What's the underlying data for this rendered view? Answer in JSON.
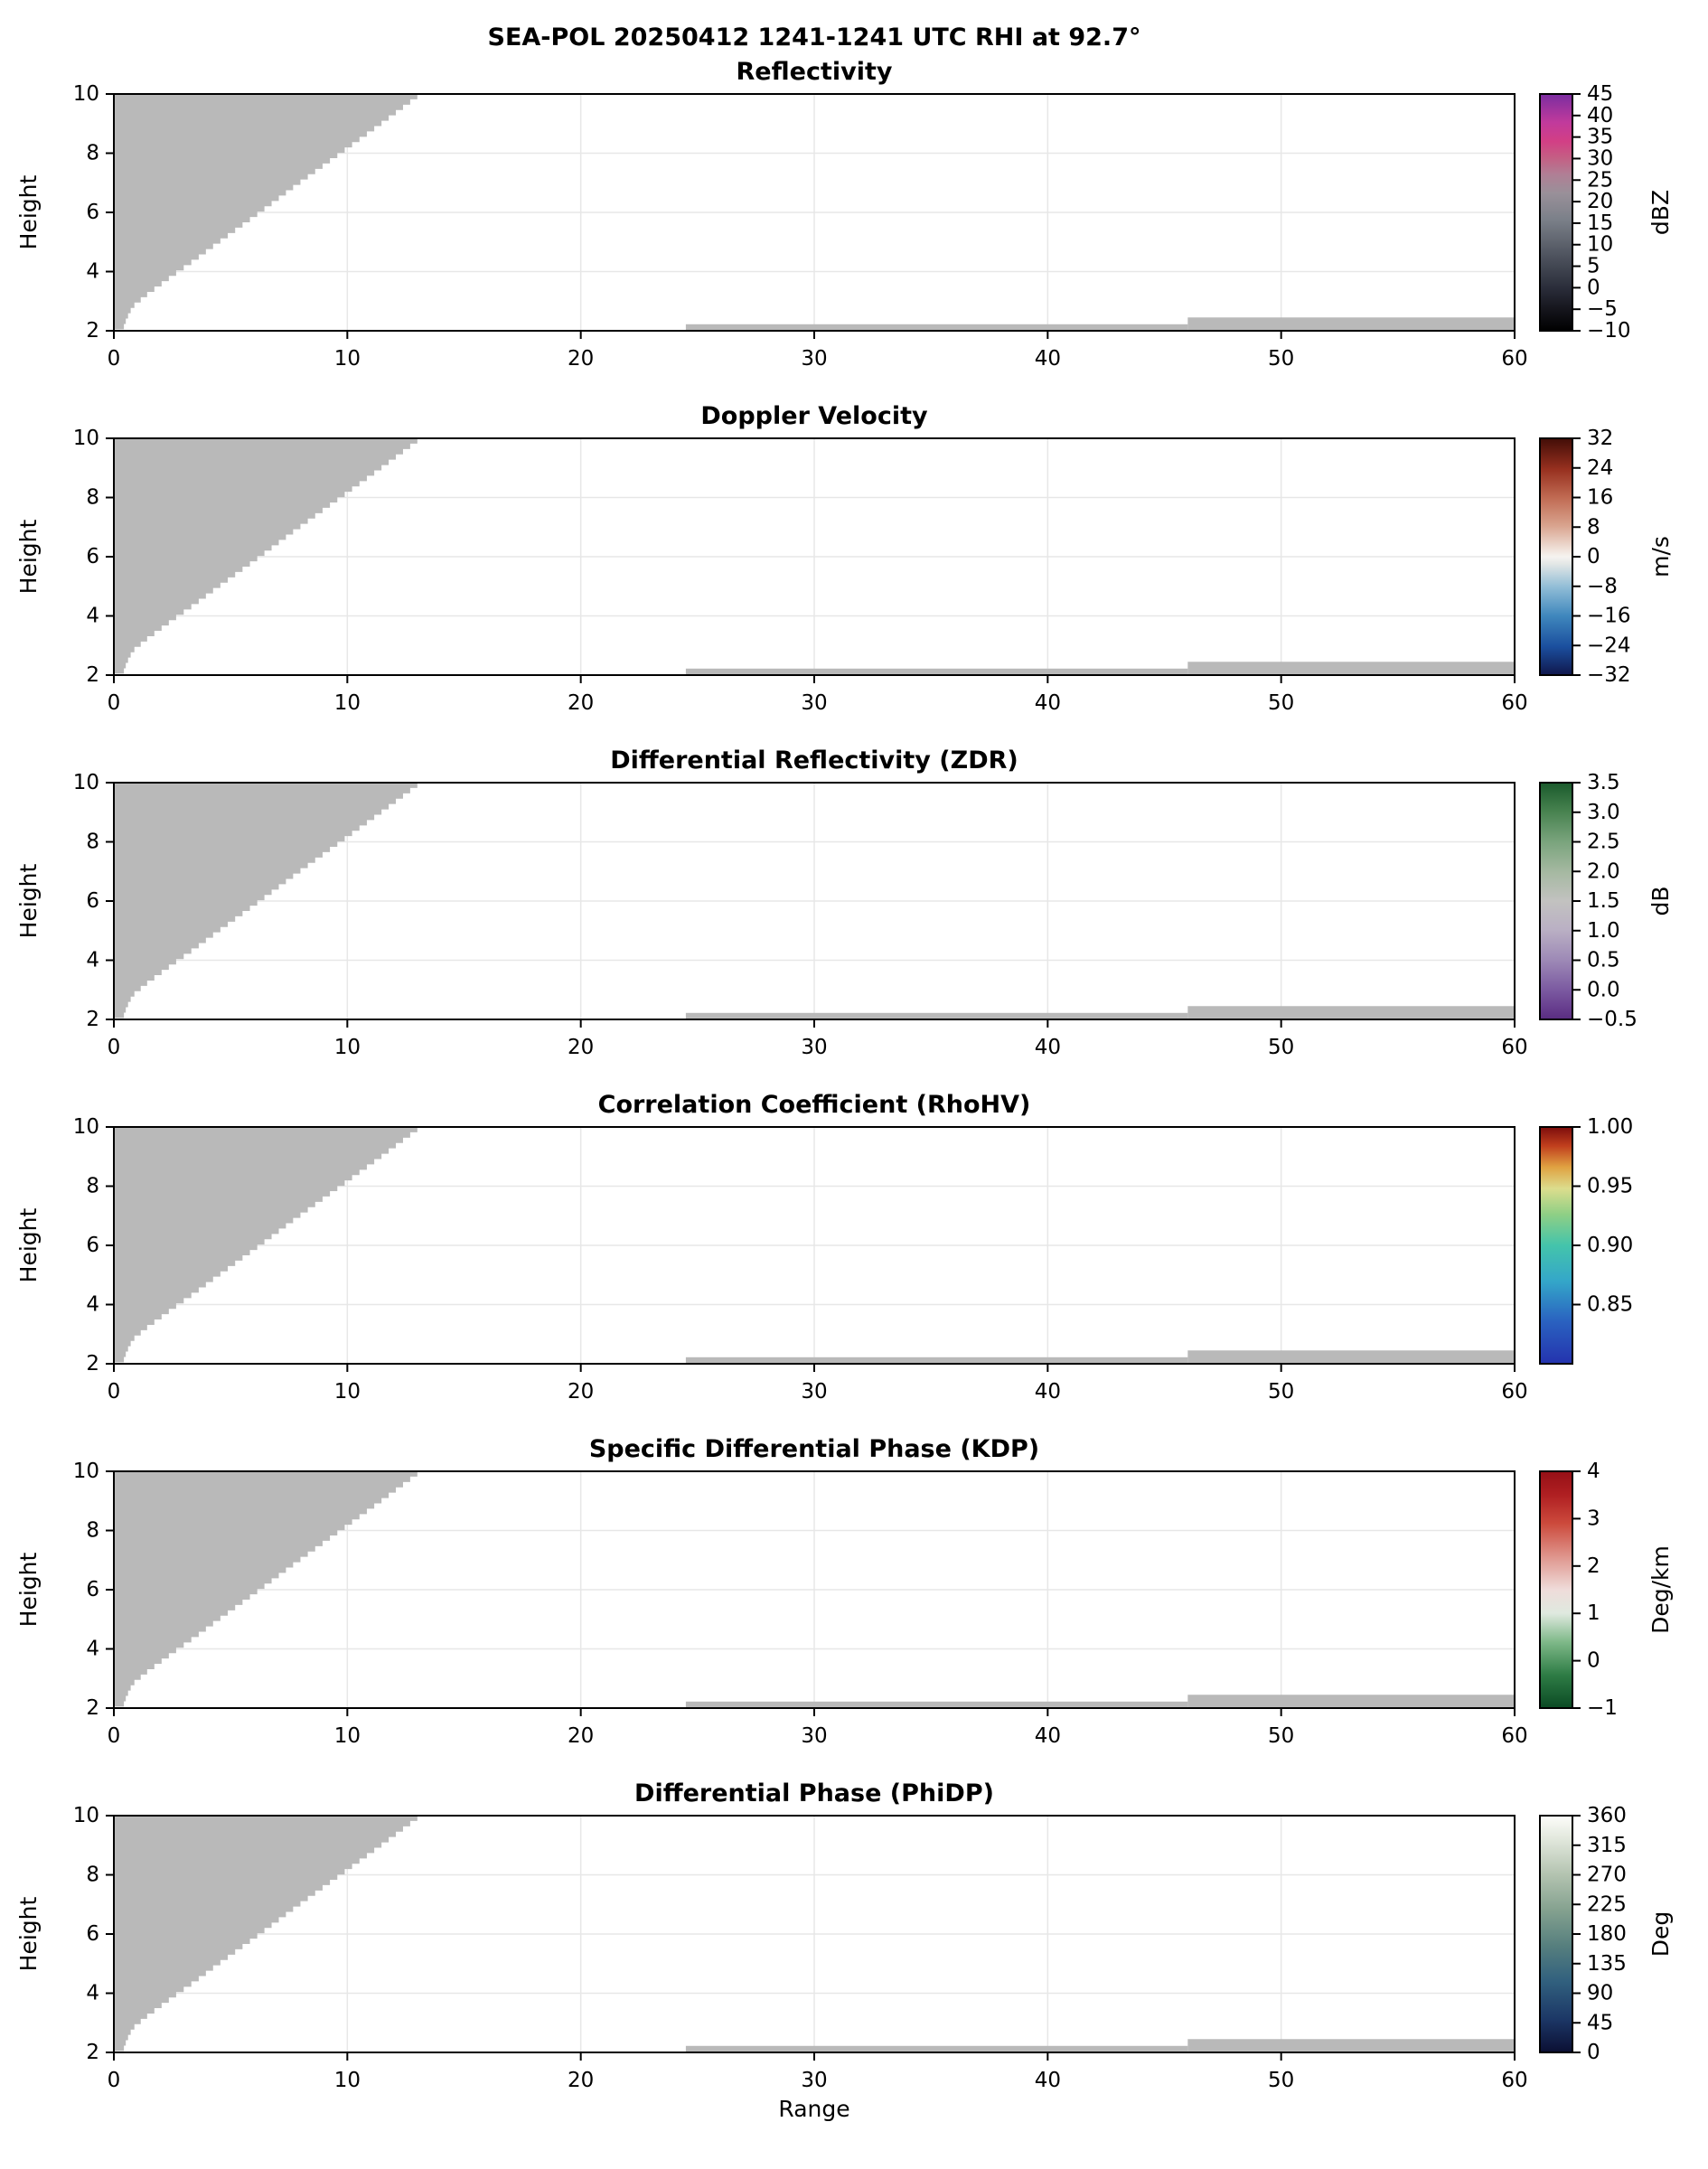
{
  "chart_data": {
    "type": "heatmap",
    "title": "SEA-POL 20250412 1241-1241 UTC RHI at 92.7°",
    "xlabel": "Range",
    "ylabel": "Height",
    "xlim": [
      0,
      60
    ],
    "ylim": [
      2,
      10
    ],
    "xticks": [
      0,
      10,
      20,
      30,
      40,
      50,
      60
    ],
    "yticks": [
      2,
      4,
      6,
      8,
      10
    ],
    "grid": true,
    "legend_position": "right-colorbars",
    "no_data_mask": {
      "color": "#b9b9b9",
      "wedge_edge_xy": [
        [
          0.35,
          2.05
        ],
        [
          0.55,
          2.5
        ],
        [
          0.8,
          2.9
        ],
        [
          1.4,
          3.3
        ],
        [
          2.6,
          4.0
        ],
        [
          3.5,
          4.5
        ],
        [
          4.35,
          5.0
        ],
        [
          6.1,
          6.0
        ],
        [
          7.8,
          7.0
        ],
        [
          9.55,
          8.0
        ],
        [
          11.3,
          9.0
        ],
        [
          13.0,
          10.0
        ]
      ],
      "strips": [
        {
          "x0": 24.5,
          "x1": 46.0,
          "y0": 2.0,
          "y1": 2.22
        },
        {
          "x0": 46.0,
          "x1": 60.0,
          "y0": 2.0,
          "y1": 2.45
        }
      ]
    },
    "panels": [
      {
        "title": "Reflectivity",
        "units": "dBZ",
        "cmin": -10,
        "cmax": 45,
        "cticks": [
          -10,
          -5,
          0,
          5,
          10,
          15,
          20,
          25,
          30,
          35,
          40,
          45
        ],
        "ctick_labels": [
          "−10",
          "−5",
          "0",
          "5",
          "10",
          "15",
          "20",
          "25",
          "30",
          "35",
          "40",
          "45"
        ],
        "colormap": [
          [
            0,
            "#000000"
          ],
          [
            0.09,
            "#15151c"
          ],
          [
            0.18,
            "#2a2d3a"
          ],
          [
            0.32,
            "#4f545f"
          ],
          [
            0.47,
            "#7b8089"
          ],
          [
            0.58,
            "#999099"
          ],
          [
            0.66,
            "#b07f95"
          ],
          [
            0.73,
            "#c45f84"
          ],
          [
            0.8,
            "#d23f85"
          ],
          [
            0.88,
            "#c13a9c"
          ],
          [
            1,
            "#7a2da0"
          ]
        ]
      },
      {
        "title": "Doppler Velocity",
        "units": "m/s",
        "cmin": -32,
        "cmax": 32,
        "cticks": [
          -32,
          -24,
          -16,
          -8,
          0,
          8,
          16,
          24,
          32
        ],
        "ctick_labels": [
          "−32",
          "−24",
          "−16",
          "−8",
          "0",
          "8",
          "16",
          "24",
          "32"
        ],
        "colormap": [
          [
            0,
            "#10174c"
          ],
          [
            0.12,
            "#1b4f9e"
          ],
          [
            0.25,
            "#3f87bd"
          ],
          [
            0.37,
            "#8fbcd6"
          ],
          [
            0.47,
            "#e3e7e6"
          ],
          [
            0.5,
            "#f5f3f0"
          ],
          [
            0.53,
            "#f0e2da"
          ],
          [
            0.63,
            "#d9a48f"
          ],
          [
            0.75,
            "#c06a52"
          ],
          [
            0.87,
            "#97301f"
          ],
          [
            1,
            "#420d07"
          ]
        ]
      },
      {
        "title": "Differential Reflectivity (ZDR)",
        "units": "dB",
        "cmin": -0.5,
        "cmax": 3.5,
        "cticks": [
          -0.5,
          0,
          0.5,
          1,
          1.5,
          2,
          2.5,
          3,
          3.5
        ],
        "ctick_labels": [
          "−0.5",
          "0.0",
          "0.5",
          "1.0",
          "1.5",
          "2.0",
          "2.5",
          "3.0",
          "3.5"
        ],
        "colormap": [
          [
            0,
            "#5a2c82"
          ],
          [
            0.12,
            "#7a58a0"
          ],
          [
            0.25,
            "#9d89b6"
          ],
          [
            0.38,
            "#bab0c4"
          ],
          [
            0.5,
            "#c2c2c0"
          ],
          [
            0.62,
            "#a6b9a2"
          ],
          [
            0.75,
            "#7aa47d"
          ],
          [
            0.88,
            "#47824f"
          ],
          [
            1,
            "#1a5a2c"
          ]
        ]
      },
      {
        "title": "Correlation Coefficient (RhoHV)",
        "units": "",
        "cmin": 0.8,
        "cmax": 1.0,
        "cticks": [
          0.85,
          0.9,
          0.95,
          1.0
        ],
        "ctick_labels": [
          "0.85",
          "0.90",
          "0.95",
          "1.00"
        ],
        "colormap": [
          [
            0,
            "#2433ae"
          ],
          [
            0.18,
            "#2a62c0"
          ],
          [
            0.35,
            "#34a7c9"
          ],
          [
            0.5,
            "#44c4ab"
          ],
          [
            0.63,
            "#8ecf85"
          ],
          [
            0.74,
            "#dcdd8d"
          ],
          [
            0.83,
            "#e0a242"
          ],
          [
            0.92,
            "#c13f1d"
          ],
          [
            1,
            "#7c0d0c"
          ]
        ]
      },
      {
        "title": "Specific Differential Phase (KDP)",
        "units": "Deg/km",
        "cmin": -1,
        "cmax": 4,
        "cticks": [
          -1,
          0,
          1,
          2,
          3,
          4
        ],
        "ctick_labels": [
          "−1",
          "0",
          "1",
          "2",
          "3",
          "4"
        ],
        "colormap": [
          [
            0,
            "#0b4a24"
          ],
          [
            0.14,
            "#2e7c45"
          ],
          [
            0.28,
            "#7fb989"
          ],
          [
            0.4,
            "#dfe9df"
          ],
          [
            0.5,
            "#efdcda"
          ],
          [
            0.63,
            "#e09a92"
          ],
          [
            0.78,
            "#cc4a3c"
          ],
          [
            0.9,
            "#b01f22"
          ],
          [
            1,
            "#951016"
          ]
        ]
      },
      {
        "title": "Differential Phase (PhiDP)",
        "units": "Deg",
        "cmin": 0,
        "cmax": 360,
        "cticks": [
          0,
          45,
          90,
          135,
          180,
          225,
          270,
          315,
          360
        ],
        "ctick_labels": [
          "0",
          "45",
          "90",
          "135",
          "180",
          "225",
          "270",
          "315",
          "360"
        ],
        "colormap": [
          [
            0,
            "#0b0f33"
          ],
          [
            0.14,
            "#1c3766"
          ],
          [
            0.3,
            "#31607e"
          ],
          [
            0.45,
            "#567f7e"
          ],
          [
            0.6,
            "#84a18f"
          ],
          [
            0.75,
            "#b3c3b0"
          ],
          [
            0.9,
            "#e1e7dc"
          ],
          [
            1,
            "#fdfdfa"
          ]
        ]
      }
    ]
  }
}
